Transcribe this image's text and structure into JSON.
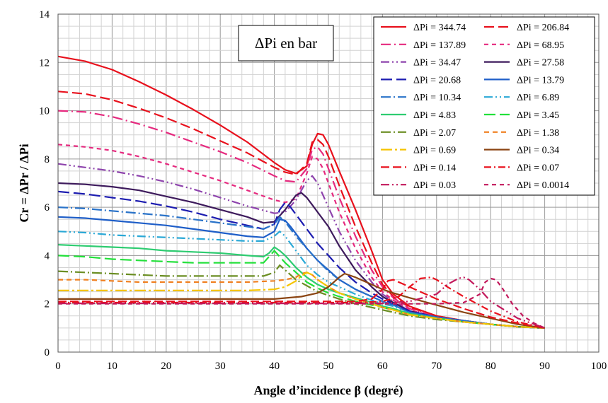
{
  "chart_data": {
    "type": "line",
    "xlabel": "Angle d’incidence β (degré)",
    "ylabel": "Cr = ΔPr / ΔPi",
    "xlim": [
      0,
      100
    ],
    "ylim": [
      0,
      14
    ],
    "x_ticks": [
      0,
      10,
      20,
      30,
      40,
      50,
      60,
      70,
      80,
      90,
      100
    ],
    "y_ticks": [
      0,
      2,
      4,
      6,
      8,
      10,
      12,
      14
    ],
    "x_minor_step": 2,
    "y_minor_step": 0.5,
    "grid": true,
    "legend_position": "top-right",
    "annotation": "ΔPi en bar",
    "series": [
      {
        "name": "ΔPi = 344.74",
        "color": "#e8101c",
        "dash": "",
        "x": [
          0,
          5,
          10,
          15,
          20,
          25,
          30,
          35,
          40,
          42,
          44,
          46,
          47,
          48,
          49,
          50,
          52,
          55,
          58,
          60,
          62,
          65,
          70,
          75,
          80,
          85,
          90
        ],
        "y": [
          12.25,
          12.05,
          11.7,
          11.2,
          10.65,
          10.05,
          9.4,
          8.7,
          7.85,
          7.55,
          7.4,
          7.7,
          8.6,
          9.05,
          9.0,
          8.6,
          7.5,
          5.9,
          4.2,
          3.0,
          2.4,
          1.9,
          1.5,
          1.3,
          1.15,
          1.05,
          1.0
        ]
      },
      {
        "name": "ΔPi = 206.84",
        "color": "#e8101c",
        "dash": "14,6",
        "x": [
          0,
          5,
          10,
          15,
          20,
          25,
          30,
          35,
          40,
          42,
          44,
          46,
          47,
          48,
          49,
          50,
          52,
          55,
          58,
          60,
          62,
          65,
          70,
          75,
          80,
          85,
          90
        ],
        "y": [
          10.8,
          10.7,
          10.45,
          10.1,
          9.7,
          9.25,
          8.75,
          8.25,
          7.65,
          7.45,
          7.35,
          7.8,
          8.7,
          8.8,
          8.6,
          8.1,
          6.9,
          5.2,
          3.7,
          2.8,
          2.3,
          1.85,
          1.5,
          1.3,
          1.15,
          1.05,
          1.0
        ]
      },
      {
        "name": "ΔPi = 137.89",
        "color": "#e5297e",
        "dash": "14,5,2,5",
        "x": [
          0,
          5,
          10,
          15,
          20,
          25,
          30,
          35,
          40,
          42,
          44,
          46,
          47,
          48,
          49,
          50,
          52,
          55,
          58,
          60,
          62,
          65,
          70,
          75,
          80,
          85,
          90
        ],
        "y": [
          10.0,
          9.95,
          9.75,
          9.45,
          9.1,
          8.7,
          8.3,
          7.85,
          7.3,
          7.1,
          7.05,
          7.6,
          8.4,
          8.5,
          8.2,
          7.6,
          6.4,
          4.8,
          3.4,
          2.7,
          2.25,
          1.8,
          1.45,
          1.3,
          1.15,
          1.05,
          1.0
        ]
      },
      {
        "name": "ΔPi = 68.95",
        "color": "#e5297e",
        "dash": "6,5",
        "x": [
          0,
          5,
          10,
          15,
          20,
          25,
          30,
          35,
          40,
          42,
          44,
          46,
          47,
          48,
          49,
          50,
          52,
          55,
          58,
          60,
          62,
          65,
          70,
          75,
          80,
          85,
          90
        ],
        "y": [
          8.6,
          8.5,
          8.35,
          8.1,
          7.8,
          7.45,
          7.1,
          6.7,
          6.3,
          6.2,
          6.35,
          7.4,
          8.1,
          8.0,
          7.6,
          7.0,
          5.8,
          4.3,
          3.1,
          2.5,
          2.15,
          1.75,
          1.45,
          1.3,
          1.15,
          1.05,
          1.0
        ]
      },
      {
        "name": "ΔPi = 34.47",
        "color": "#8e44ad",
        "dash": "12,4,2,4,2,4",
        "x": [
          0,
          5,
          10,
          15,
          20,
          25,
          30,
          35,
          40,
          42,
          44,
          46,
          47,
          48,
          49,
          50,
          52,
          55,
          58,
          60,
          62,
          65,
          70,
          75,
          80,
          85,
          90
        ],
        "y": [
          7.8,
          7.65,
          7.5,
          7.3,
          7.05,
          6.75,
          6.4,
          6.05,
          5.75,
          5.8,
          6.3,
          7.1,
          7.3,
          7.0,
          6.5,
          6.0,
          5.0,
          3.8,
          2.9,
          2.4,
          2.1,
          1.7,
          1.45,
          1.3,
          1.15,
          1.05,
          1.0
        ]
      },
      {
        "name": "ΔPi = 27.58",
        "color": "#3d1a5c",
        "dash": "",
        "x": [
          0,
          5,
          10,
          15,
          20,
          25,
          30,
          35,
          38,
          40,
          42,
          44,
          45,
          46,
          47,
          48,
          50,
          52,
          55,
          58,
          60,
          62,
          65,
          70,
          75,
          80,
          85,
          90
        ],
        "y": [
          7.0,
          6.95,
          6.85,
          6.7,
          6.45,
          6.2,
          5.9,
          5.6,
          5.35,
          5.4,
          5.9,
          6.5,
          6.6,
          6.4,
          6.1,
          5.8,
          5.2,
          4.4,
          3.4,
          2.7,
          2.3,
          2.05,
          1.7,
          1.45,
          1.3,
          1.15,
          1.05,
          1.0
        ]
      },
      {
        "name": "ΔPi = 20.68",
        "color": "#1c1cb0",
        "dash": "16,6",
        "x": [
          0,
          5,
          10,
          15,
          20,
          25,
          30,
          35,
          38,
          40,
          41,
          42,
          43,
          44,
          46,
          48,
          50,
          52,
          55,
          58,
          60,
          62,
          65,
          70,
          75,
          80,
          85,
          90
        ],
        "y": [
          6.65,
          6.55,
          6.4,
          6.25,
          6.05,
          5.8,
          5.5,
          5.25,
          5.1,
          5.3,
          5.9,
          6.2,
          6.0,
          5.7,
          5.1,
          4.5,
          4.0,
          3.5,
          2.9,
          2.45,
          2.2,
          2.0,
          1.7,
          1.45,
          1.3,
          1.15,
          1.05,
          1.0
        ]
      },
      {
        "name": "ΔPi = 13.79",
        "color": "#1e5ec8",
        "dash": "",
        "x": [
          0,
          5,
          10,
          15,
          20,
          25,
          30,
          35,
          38,
          40,
          41,
          42,
          43,
          44,
          46,
          48,
          50,
          52,
          55,
          58,
          60,
          62,
          65,
          70,
          75,
          80,
          85,
          90
        ],
        "y": [
          5.6,
          5.55,
          5.45,
          5.35,
          5.25,
          5.1,
          4.95,
          4.8,
          4.75,
          5.0,
          5.5,
          5.45,
          5.2,
          4.9,
          4.3,
          3.8,
          3.4,
          3.0,
          2.6,
          2.3,
          2.1,
          1.95,
          1.65,
          1.45,
          1.3,
          1.15,
          1.05,
          1.0
        ]
      },
      {
        "name": "ΔPi = 10.34",
        "color": "#2a73c9",
        "dash": "14,4,2,4",
        "x": [
          0,
          5,
          10,
          15,
          20,
          25,
          30,
          35,
          38,
          40,
          41,
          42,
          43,
          44,
          46,
          48,
          50,
          52,
          55,
          58,
          60,
          62,
          65,
          70,
          75,
          80,
          85,
          90
        ],
        "y": [
          6.0,
          5.95,
          5.85,
          5.75,
          5.65,
          5.5,
          5.35,
          5.2,
          5.1,
          5.3,
          5.6,
          5.4,
          5.1,
          4.8,
          4.3,
          3.8,
          3.35,
          3.0,
          2.6,
          2.3,
          2.1,
          1.95,
          1.65,
          1.45,
          1.3,
          1.15,
          1.05,
          1.0
        ]
      },
      {
        "name": "ΔPi = 6.89",
        "color": "#2aa8d6",
        "dash": "12,4,2,4,2,4",
        "x": [
          0,
          5,
          10,
          15,
          20,
          25,
          30,
          35,
          38,
          40,
          41,
          42,
          43,
          44,
          46,
          48,
          50,
          52,
          55,
          58,
          60,
          62,
          65,
          70,
          75,
          80,
          85,
          90
        ],
        "y": [
          5.0,
          4.95,
          4.85,
          4.8,
          4.75,
          4.7,
          4.65,
          4.6,
          4.6,
          4.8,
          5.0,
          4.8,
          4.5,
          4.2,
          3.6,
          3.2,
          2.9,
          2.7,
          2.4,
          2.15,
          2.0,
          1.9,
          1.6,
          1.4,
          1.25,
          1.15,
          1.05,
          1.0
        ]
      },
      {
        "name": "ΔPi = 4.83",
        "color": "#2ecc71",
        "dash": "",
        "x": [
          0,
          5,
          10,
          15,
          20,
          25,
          30,
          35,
          38,
          39,
          40,
          41,
          42,
          44,
          46,
          48,
          50,
          52,
          55,
          58,
          60,
          62,
          65,
          70,
          75,
          80,
          85,
          90
        ],
        "y": [
          4.45,
          4.4,
          4.35,
          4.3,
          4.2,
          4.15,
          4.1,
          4.0,
          3.95,
          4.1,
          4.35,
          4.2,
          4.0,
          3.5,
          3.1,
          2.8,
          2.6,
          2.45,
          2.25,
          2.05,
          1.9,
          1.8,
          1.6,
          1.4,
          1.25,
          1.15,
          1.05,
          1.0
        ]
      },
      {
        "name": "ΔPi = 3.45",
        "color": "#22e03a",
        "dash": "16,6",
        "x": [
          0,
          5,
          10,
          15,
          20,
          25,
          30,
          35,
          38,
          39,
          40,
          41,
          42,
          44,
          46,
          48,
          50,
          52,
          55,
          58,
          60,
          62,
          65,
          70,
          75,
          80,
          85,
          90
        ],
        "y": [
          4.0,
          3.95,
          3.85,
          3.8,
          3.75,
          3.7,
          3.7,
          3.7,
          3.7,
          3.95,
          4.2,
          3.95,
          3.7,
          3.3,
          2.9,
          2.65,
          2.45,
          2.3,
          2.1,
          1.95,
          1.85,
          1.75,
          1.55,
          1.4,
          1.25,
          1.15,
          1.05,
          1.0
        ]
      },
      {
        "name": "ΔPi = 2.07",
        "color": "#6b8e23",
        "dash": "14,4,2,4",
        "x": [
          0,
          5,
          10,
          15,
          20,
          25,
          30,
          35,
          38,
          40,
          41,
          42,
          44,
          46,
          48,
          50,
          52,
          55,
          58,
          60,
          62,
          65,
          70,
          75,
          80,
          85,
          90
        ],
        "y": [
          3.35,
          3.3,
          3.25,
          3.2,
          3.15,
          3.15,
          3.15,
          3.15,
          3.15,
          3.3,
          3.6,
          3.4,
          3.0,
          2.75,
          2.5,
          2.35,
          2.2,
          2.0,
          1.85,
          1.75,
          1.65,
          1.5,
          1.35,
          1.25,
          1.15,
          1.05,
          1.0
        ]
      },
      {
        "name": "ΔPi = 1.38",
        "color": "#f08020",
        "dash": "7,5",
        "x": [
          0,
          5,
          10,
          15,
          20,
          25,
          30,
          35,
          40,
          42,
          44,
          45,
          46,
          47,
          48,
          50,
          52,
          55,
          58,
          60,
          62,
          65,
          70,
          75,
          80,
          85,
          90
        ],
        "y": [
          3.0,
          3.0,
          2.95,
          2.9,
          2.9,
          2.9,
          2.9,
          2.9,
          2.95,
          3.0,
          3.1,
          3.25,
          3.3,
          3.2,
          3.0,
          2.7,
          2.45,
          2.2,
          2.0,
          1.85,
          1.75,
          1.55,
          1.4,
          1.25,
          1.15,
          1.05,
          1.0
        ]
      },
      {
        "name": "ΔPi = 0.69",
        "color": "#f5c400",
        "dash": "16,4,3,4",
        "x": [
          0,
          5,
          10,
          15,
          20,
          25,
          30,
          35,
          40,
          42,
          44,
          45,
          46,
          47,
          48,
          50,
          52,
          55,
          58,
          60,
          62,
          65,
          70,
          75,
          80,
          85,
          90
        ],
        "y": [
          2.55,
          2.55,
          2.55,
          2.55,
          2.55,
          2.55,
          2.55,
          2.55,
          2.6,
          2.7,
          2.95,
          3.15,
          3.3,
          3.2,
          3.0,
          2.7,
          2.45,
          2.2,
          2.0,
          1.85,
          1.75,
          1.55,
          1.4,
          1.25,
          1.15,
          1.05,
          1.0
        ]
      },
      {
        "name": "ΔPi = 0.34",
        "color": "#8b4513",
        "dash": "",
        "x": [
          0,
          5,
          10,
          15,
          20,
          25,
          30,
          35,
          40,
          45,
          48,
          50,
          52,
          53,
          55,
          58,
          60,
          62,
          65,
          70,
          75,
          80,
          85,
          90
        ],
        "y": [
          2.2,
          2.2,
          2.2,
          2.2,
          2.2,
          2.2,
          2.2,
          2.2,
          2.2,
          2.3,
          2.45,
          2.7,
          3.1,
          3.25,
          3.1,
          2.8,
          2.6,
          2.45,
          2.25,
          1.95,
          1.65,
          1.4,
          1.15,
          1.0
        ]
      },
      {
        "name": "ΔPi = 0.14",
        "color": "#e8101c",
        "dash": "12,5",
        "x": [
          0,
          5,
          10,
          15,
          20,
          25,
          30,
          35,
          40,
          45,
          50,
          55,
          58,
          60,
          61,
          62,
          64,
          66,
          70,
          75,
          80,
          85,
          90
        ],
        "y": [
          2.1,
          2.1,
          2.1,
          2.1,
          2.1,
          2.1,
          2.1,
          2.1,
          2.1,
          2.1,
          2.1,
          2.1,
          2.2,
          2.6,
          2.95,
          3.0,
          2.8,
          2.6,
          2.2,
          1.8,
          1.45,
          1.2,
          1.0
        ]
      },
      {
        "name": "ΔPi = 0.07",
        "color": "#e8101c",
        "dash": "10,4,2,4",
        "x": [
          0,
          5,
          10,
          15,
          20,
          25,
          30,
          35,
          40,
          45,
          50,
          55,
          60,
          63,
          65,
          67,
          69,
          70,
          72,
          75,
          80,
          85,
          90
        ],
        "y": [
          2.05,
          2.05,
          2.05,
          2.05,
          2.05,
          2.05,
          2.05,
          2.05,
          2.05,
          2.05,
          2.05,
          2.05,
          2.1,
          2.3,
          2.7,
          3.05,
          3.1,
          3.0,
          2.7,
          2.3,
          1.7,
          1.25,
          1.0
        ]
      },
      {
        "name": "ΔPi = 0.03",
        "color": "#c2185b",
        "dash": "12,4,2,4,2,4",
        "x": [
          0,
          5,
          10,
          15,
          20,
          25,
          30,
          35,
          40,
          45,
          50,
          55,
          60,
          65,
          70,
          72,
          74,
          75,
          76,
          78,
          80,
          85,
          90
        ],
        "y": [
          2.02,
          2.02,
          2.02,
          2.02,
          2.02,
          2.02,
          2.02,
          2.02,
          2.02,
          2.02,
          2.02,
          2.02,
          2.02,
          2.1,
          2.4,
          2.8,
          3.05,
          3.1,
          3.0,
          2.6,
          2.1,
          1.4,
          1.0
        ]
      },
      {
        "name": "ΔPi = 0.0014",
        "color": "#c2185b",
        "dash": "6,5",
        "x": [
          0,
          5,
          10,
          15,
          20,
          25,
          30,
          35,
          40,
          45,
          50,
          55,
          60,
          65,
          70,
          75,
          78,
          79,
          80,
          81,
          82,
          84,
          86,
          88,
          90
        ],
        "y": [
          2.0,
          2.0,
          2.0,
          2.0,
          2.0,
          2.0,
          2.0,
          2.0,
          2.0,
          2.0,
          2.0,
          2.0,
          2.0,
          2.0,
          2.0,
          2.05,
          2.4,
          2.9,
          3.05,
          3.0,
          2.7,
          2.0,
          1.5,
          1.2,
          1.0
        ]
      }
    ]
  }
}
